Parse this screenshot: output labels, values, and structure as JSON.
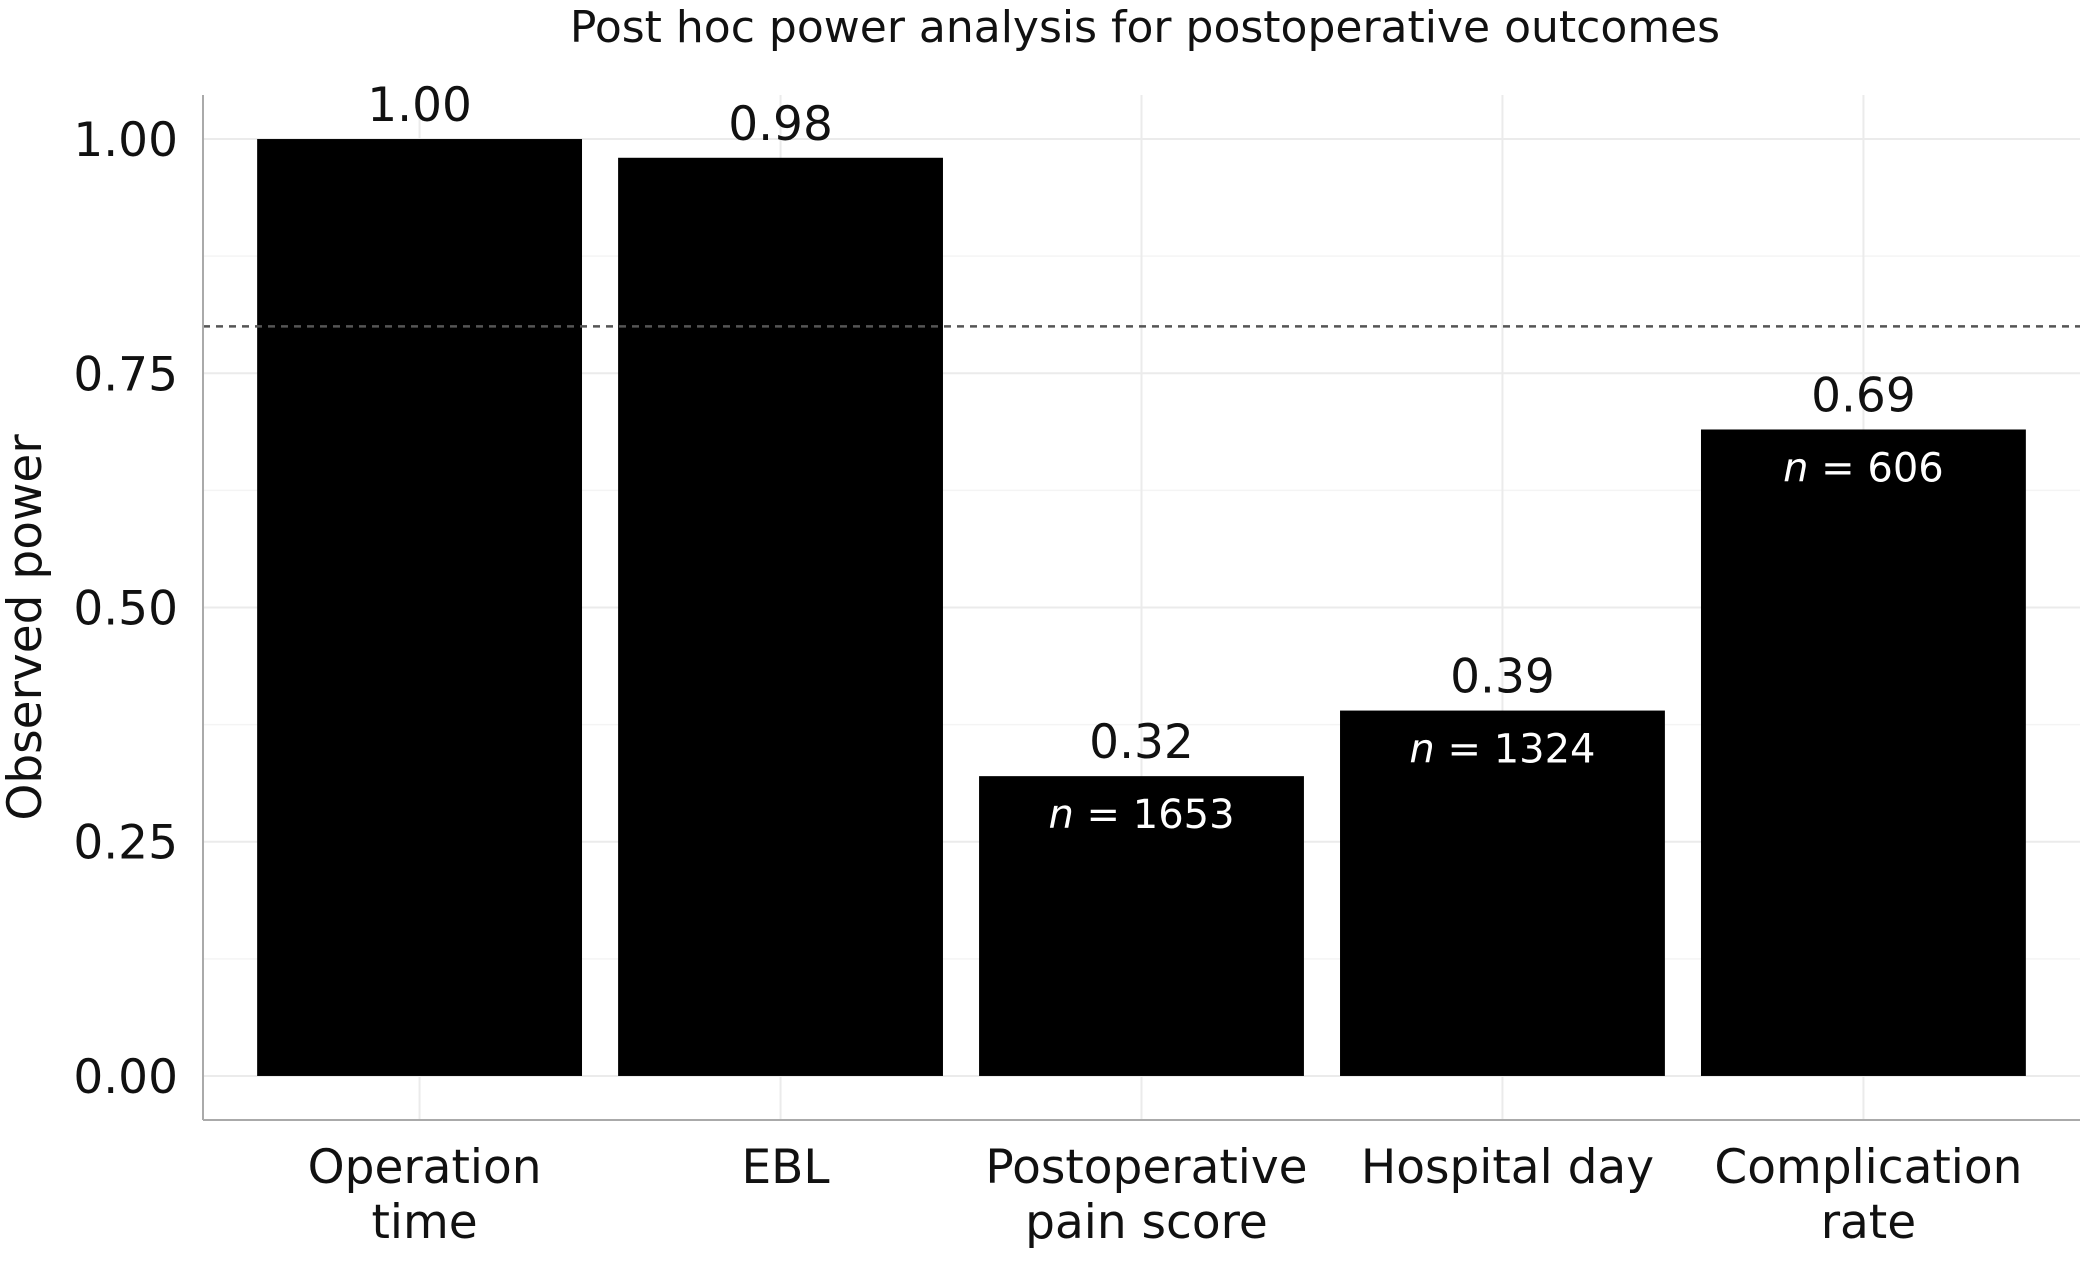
{
  "chart_data": {
    "type": "bar",
    "title": "Post hoc power analysis for postoperative outcomes",
    "xlabel": "",
    "ylabel": "Observed power",
    "categories": [
      [
        "Operation",
        "time"
      ],
      [
        "EBL"
      ],
      [
        "Postoperative",
        "pain score"
      ],
      [
        "Hospital day"
      ],
      [
        "Complication",
        "rate"
      ]
    ],
    "values": [
      1.0,
      0.98,
      0.32,
      0.39,
      0.69
    ],
    "value_labels": [
      "1.00",
      "0.98",
      "0.32",
      "0.39",
      "0.69"
    ],
    "sample_sizes": [
      null,
      null,
      1653,
      1324,
      606
    ],
    "n_prefix": "n",
    "n_sep": " = ",
    "ylim": [
      -0.047,
      1.047
    ],
    "yticks": [
      0.0,
      0.25,
      0.5,
      0.75,
      1.0
    ],
    "ytick_labels": [
      "0.00",
      "0.25",
      "0.50",
      "0.75",
      "1.00"
    ],
    "reference_line": 0.8,
    "grid": true,
    "legend": "none",
    "colors": {
      "bar": "#000000",
      "grid_major": "#ebebeb",
      "grid_minor": "#f4f4f4",
      "axis": "#aaaaaa",
      "reference": "#555555",
      "text": "#111111",
      "inner_text": "#ffffff"
    }
  }
}
